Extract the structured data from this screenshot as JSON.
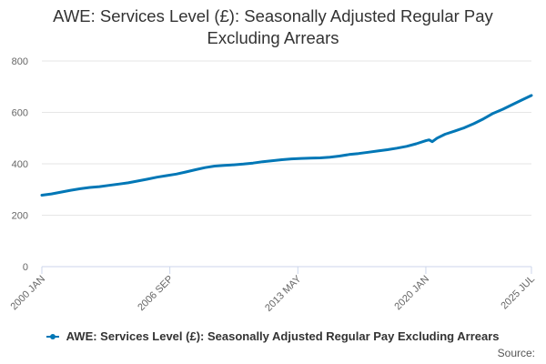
{
  "chart_data": {
    "type": "line",
    "title": "AWE: Services Level (£): Seasonally Adjusted Regular Pay Excluding Arrears",
    "title_lines": [
      "AWE: Services Level (£): Seasonally Adjusted Regular Pay",
      "Excluding Arrears"
    ],
    "xlabel": "",
    "ylabel": "",
    "x_tick_labels": [
      "2000 JAN",
      "2006 SEP",
      "2013 MAY",
      "2020 JAN",
      "2025 JUL"
    ],
    "x_tick_months": [
      "2000-01",
      "2006-09",
      "2013-05",
      "2020-01",
      "2025-07"
    ],
    "x_range": [
      "2000-01",
      "2025-07"
    ],
    "ylim": [
      0,
      800
    ],
    "y_ticks": [
      0,
      200,
      400,
      600,
      800
    ],
    "grid": true,
    "legend_position": "bottom",
    "series": [
      {
        "name": "AWE: Services Level (£): Seasonally Adjusted Regular Pay Excluding Arrears",
        "color": "#0077b6",
        "points": [
          [
            "2000-01",
            278
          ],
          [
            "2000-07",
            283
          ],
          [
            "2001-01",
            290
          ],
          [
            "2001-07",
            297
          ],
          [
            "2002-01",
            303
          ],
          [
            "2002-07",
            308
          ],
          [
            "2003-01",
            311
          ],
          [
            "2003-07",
            316
          ],
          [
            "2004-01",
            321
          ],
          [
            "2004-07",
            326
          ],
          [
            "2005-01",
            333
          ],
          [
            "2005-07",
            340
          ],
          [
            "2006-01",
            348
          ],
          [
            "2006-07",
            354
          ],
          [
            "2007-01",
            360
          ],
          [
            "2007-07",
            368
          ],
          [
            "2008-01",
            377
          ],
          [
            "2008-07",
            385
          ],
          [
            "2009-01",
            391
          ],
          [
            "2009-07",
            394
          ],
          [
            "2010-01",
            396
          ],
          [
            "2010-07",
            399
          ],
          [
            "2011-01",
            403
          ],
          [
            "2011-07",
            408
          ],
          [
            "2012-01",
            412
          ],
          [
            "2012-07",
            416
          ],
          [
            "2013-01",
            419
          ],
          [
            "2013-07",
            421
          ],
          [
            "2014-01",
            422
          ],
          [
            "2014-07",
            423
          ],
          [
            "2015-01",
            426
          ],
          [
            "2015-07",
            430
          ],
          [
            "2016-01",
            436
          ],
          [
            "2016-07",
            440
          ],
          [
            "2017-01",
            445
          ],
          [
            "2017-07",
            450
          ],
          [
            "2018-01",
            455
          ],
          [
            "2018-07",
            461
          ],
          [
            "2019-01",
            468
          ],
          [
            "2019-07",
            478
          ],
          [
            "2020-01",
            490
          ],
          [
            "2020-03",
            493
          ],
          [
            "2020-05",
            486
          ],
          [
            "2020-08",
            500
          ],
          [
            "2021-01",
            515
          ],
          [
            "2021-07",
            527
          ],
          [
            "2022-01",
            540
          ],
          [
            "2022-07",
            556
          ],
          [
            "2023-01",
            575
          ],
          [
            "2023-07",
            596
          ],
          [
            "2024-01",
            612
          ],
          [
            "2024-07",
            630
          ],
          [
            "2025-01",
            648
          ],
          [
            "2025-07",
            666
          ]
        ]
      }
    ]
  },
  "source_label": "Source:"
}
